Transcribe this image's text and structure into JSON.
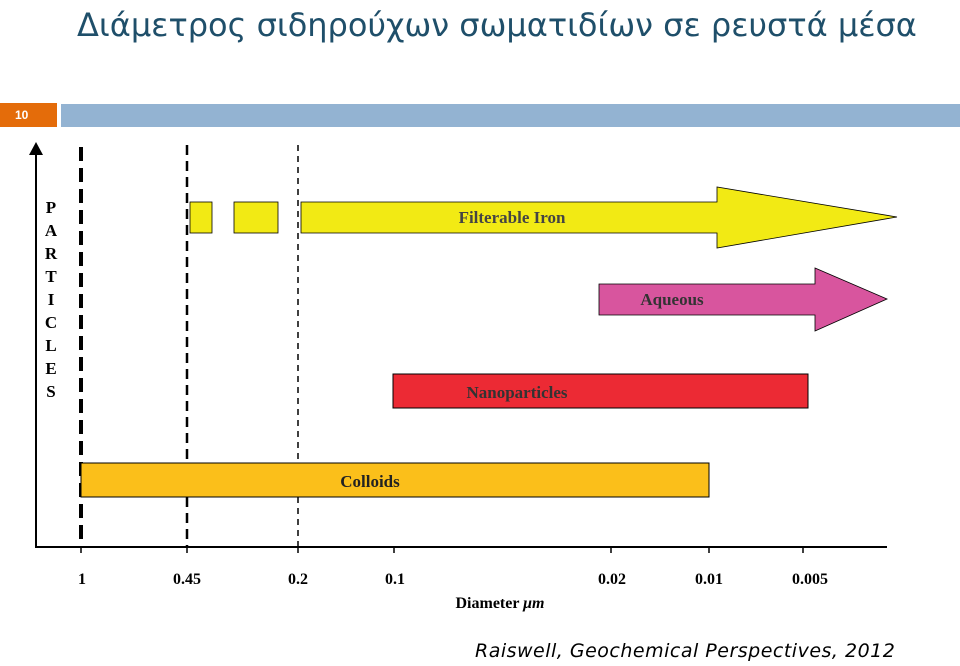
{
  "slide": {
    "title": "Διάμετρος σιδηρούχων σωματιδίων σε ρευστά μέσα",
    "page_number": "10",
    "citation": "Raiswell, Geochemical Perspectives, 2012"
  },
  "diagram": {
    "y_axis_label": "PARTICLES",
    "y_axis_letters": [
      "P",
      "A",
      "R",
      "T",
      "I",
      "C",
      "L",
      "E",
      "S"
    ],
    "x_axis_title_prefix": "Diameter",
    "x_axis_unit": "μm",
    "x_ticks": [
      "1",
      "0.45",
      "0.2",
      "0.1",
      "0.02",
      "0.01",
      "0.005"
    ],
    "bands": [
      {
        "label": "Filterable Iron",
        "start": "0.45",
        "end": "<0.005",
        "shape": "arrow",
        "color": "#F2EA14"
      },
      {
        "label": "Aqueous",
        "start": "0.02",
        "end": "<0.005",
        "shape": "arrow",
        "color": "#D8559E"
      },
      {
        "label": "Nanoparticles",
        "start": "0.1",
        "end": "0.005",
        "shape": "bar",
        "color": "#EC2A34"
      },
      {
        "label": "Colloids",
        "start": "1",
        "end": "0.01",
        "shape": "bar",
        "color": "#FBBF1A"
      }
    ]
  },
  "colors": {
    "title": "#1F4F6A",
    "title_bar": "#93B3D2",
    "badge": "#E46C0A"
  }
}
